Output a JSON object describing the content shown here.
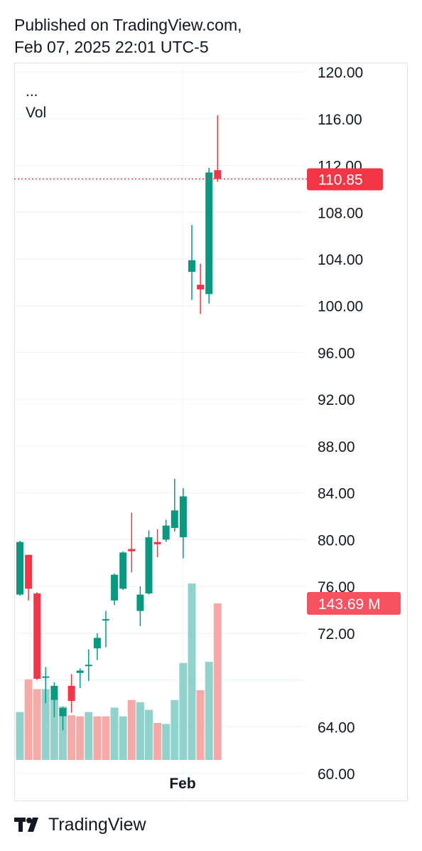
{
  "header": {
    "line1": "Published on TradingView.com,",
    "line2": "Feb 07, 2025 22:01 UTC-5"
  },
  "legend": {
    "symbol": "...",
    "vol": "Vol"
  },
  "footer": {
    "brand": "TradingView"
  },
  "colors": {
    "up": "#089981",
    "down": "#f23645",
    "vol_up": "#92d2cc",
    "vol_down": "#f7a9a7",
    "grid": "#f0f3fa",
    "price_line": "#f23645",
    "vol_badge": "#f7525f"
  },
  "chart_data": {
    "type": "candlestick",
    "y_ticks": [
      "120.00",
      "116.00",
      "112.00",
      "108.00",
      "104.00",
      "100.00",
      "96.00",
      "92.00",
      "88.00",
      "84.00",
      "80.00",
      "76.00",
      "72.00",
      "64.00",
      "60.00"
    ],
    "y_tick_values": [
      120,
      116,
      112,
      108,
      104,
      100,
      96,
      92,
      88,
      84,
      80,
      76,
      72,
      64,
      60
    ],
    "ylim": [
      58.3,
      122.5
    ],
    "x_tick_label": "Feb",
    "last_price": 110.85,
    "last_price_label": "110.85",
    "last_volume_label": "143.69 M",
    "candles": [
      {
        "o": 75.3,
        "h": 79.9,
        "l": 75.2,
        "c": 79.8
      },
      {
        "o": 78.7,
        "h": 78.7,
        "l": 74.8,
        "c": 75.8
      },
      {
        "o": 75.4,
        "h": 75.5,
        "l": 68.0,
        "c": 68.1
      },
      {
        "o": 68.2,
        "h": 69.1,
        "l": 66.0,
        "c": 68.3
      },
      {
        "o": 66.3,
        "h": 67.8,
        "l": 64.8,
        "c": 67.5
      },
      {
        "o": 64.9,
        "h": 65.7,
        "l": 63.7,
        "c": 65.6
      },
      {
        "o": 67.5,
        "h": 68.5,
        "l": 65.2,
        "c": 66.2
      },
      {
        "o": 68.6,
        "h": 69.0,
        "l": 67.3,
        "c": 68.8
      },
      {
        "o": 69.2,
        "h": 70.6,
        "l": 67.9,
        "c": 69.3
      },
      {
        "o": 70.7,
        "h": 72.0,
        "l": 69.7,
        "c": 71.6
      },
      {
        "o": 73.1,
        "h": 73.9,
        "l": 70.8,
        "c": 73.2
      },
      {
        "o": 74.8,
        "h": 77.1,
        "l": 74.4,
        "c": 77.0
      },
      {
        "o": 75.8,
        "h": 79.0,
        "l": 75.7,
        "c": 78.9
      },
      {
        "o": 79.2,
        "h": 82.3,
        "l": 77.2,
        "c": 79.0
      },
      {
        "o": 73.9,
        "h": 76.0,
        "l": 72.6,
        "c": 75.3
      },
      {
        "o": 75.4,
        "h": 80.8,
        "l": 75.3,
        "c": 80.2
      },
      {
        "o": 79.8,
        "h": 80.9,
        "l": 78.5,
        "c": 79.6
      },
      {
        "o": 80.0,
        "h": 81.7,
        "l": 79.8,
        "c": 81.2
      },
      {
        "o": 81.0,
        "h": 85.2,
        "l": 80.7,
        "c": 82.5
      },
      {
        "o": 80.2,
        "h": 84.4,
        "l": 78.4,
        "c": 83.7
      },
      {
        "o": 102.9,
        "h": 106.9,
        "l": 100.5,
        "c": 103.9
      },
      {
        "o": 101.8,
        "h": 103.6,
        "l": 99.3,
        "c": 101.4
      },
      {
        "o": 101.0,
        "h": 111.8,
        "l": 100.2,
        "c": 111.4
      },
      {
        "o": 111.6,
        "h": 116.3,
        "l": 110.6,
        "c": 110.85
      }
    ],
    "volumes": [
      {
        "v": 44,
        "dir": "up"
      },
      {
        "v": 74,
        "dir": "down"
      },
      {
        "v": 65,
        "dir": "down"
      },
      {
        "v": 65,
        "dir": "up"
      },
      {
        "v": 57,
        "dir": "up"
      },
      {
        "v": 49,
        "dir": "up"
      },
      {
        "v": 41,
        "dir": "down"
      },
      {
        "v": 40,
        "dir": "down"
      },
      {
        "v": 44,
        "dir": "up"
      },
      {
        "v": 40,
        "dir": "down"
      },
      {
        "v": 40,
        "dir": "down"
      },
      {
        "v": 48,
        "dir": "up"
      },
      {
        "v": 40,
        "dir": "up"
      },
      {
        "v": 55,
        "dir": "down"
      },
      {
        "v": 53,
        "dir": "up"
      },
      {
        "v": 46,
        "dir": "up"
      },
      {
        "v": 34,
        "dir": "down"
      },
      {
        "v": 33,
        "dir": "up"
      },
      {
        "v": 55,
        "dir": "up"
      },
      {
        "v": 89,
        "dir": "up"
      },
      {
        "v": 162,
        "dir": "up"
      },
      {
        "v": 64,
        "dir": "down"
      },
      {
        "v": 90,
        "dir": "up"
      },
      {
        "v": 143.69,
        "dir": "down"
      }
    ],
    "volume_max": 160
  }
}
